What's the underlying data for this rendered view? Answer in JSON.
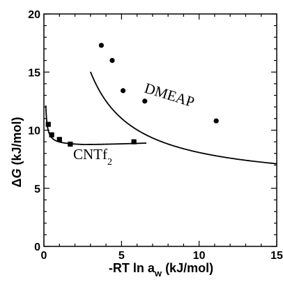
{
  "chart_data": {
    "type": "scatter",
    "xlabel": "-RT ln a",
    "xlabel_subscript": "w",
    "xlabel_unit": "(kJ/mol)",
    "ylabel_delta": "Δ",
    "ylabel_var": "G",
    "ylabel_unit": "(kJ/mol)",
    "xlim": [
      0,
      15
    ],
    "ylim": [
      0,
      20
    ],
    "xticks": [
      0,
      5,
      10,
      15
    ],
    "yticks": [
      0,
      5,
      10,
      15,
      20
    ],
    "grid": false,
    "series": [
      {
        "name": "DMEAP",
        "marker": "circle",
        "points": [
          {
            "x": 3.7,
            "y": 17.3
          },
          {
            "x": 4.4,
            "y": 16.0
          },
          {
            "x": 5.1,
            "y": 13.4
          },
          {
            "x": 6.5,
            "y": 12.5
          },
          {
            "x": 11.1,
            "y": 10.8
          }
        ],
        "fit": {
          "a": 28.5,
          "b": 0.1,
          "c": 5.2,
          "x_start": 3.0,
          "x_end": 15.0
        }
      },
      {
        "name": "CNTf",
        "name_subscript": "2",
        "marker": "square",
        "points": [
          {
            "x": 0.28,
            "y": 10.5
          },
          {
            "x": 0.5,
            "y": 9.6
          },
          {
            "x": 1.0,
            "y": 9.2
          },
          {
            "x": 1.7,
            "y": 8.8
          },
          {
            "x": 5.8,
            "y": 9.0
          }
        ],
        "fit": {
          "a": 0.35,
          "b": 0.02,
          "c": 8.63,
          "d": 0.05,
          "x0": 2.5,
          "x_start": 0.12,
          "x_end": 6.6
        }
      }
    ]
  }
}
